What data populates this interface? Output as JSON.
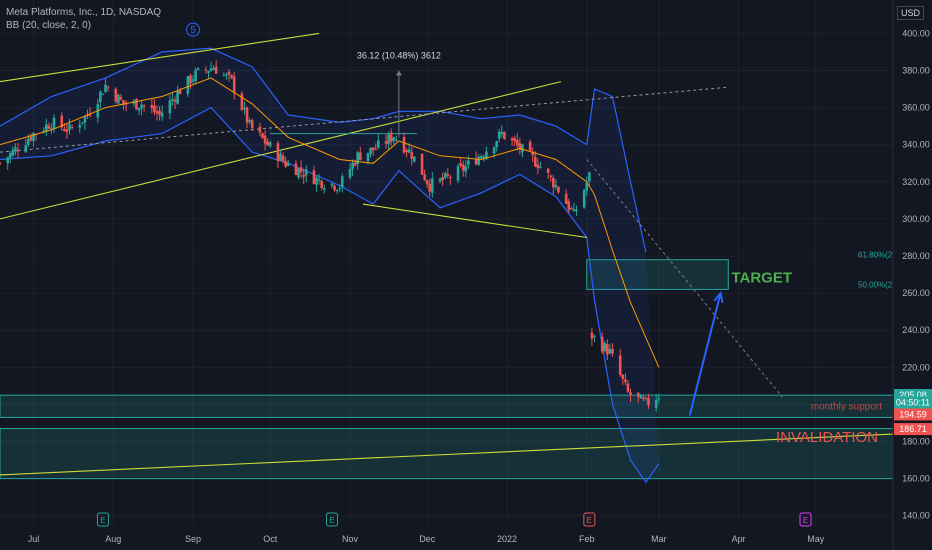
{
  "header": {
    "title": "Meta Platforms, Inc., 1D, NASDAQ",
    "indicator": "BB (20, close, 2, 0)"
  },
  "currency": "USD",
  "chart_data": {
    "type": "candlestick",
    "ylim": [
      135,
      418
    ],
    "y_ticks": [
      140,
      160,
      180,
      200,
      220,
      240,
      260,
      280,
      300,
      320,
      340,
      360,
      380,
      400
    ],
    "x_ticks": [
      {
        "label": "Jul",
        "date": "2021-07-01"
      },
      {
        "label": "Aug",
        "date": "2021-08-01"
      },
      {
        "label": "Sep",
        "date": "2021-09-01"
      },
      {
        "label": "Oct",
        "date": "2021-10-01"
      },
      {
        "label": "Nov",
        "date": "2021-11-01"
      },
      {
        "label": "Dec",
        "date": "2021-12-01"
      },
      {
        "label": "2022",
        "date": "2022-01-01"
      },
      {
        "label": "Feb",
        "date": "2022-02-01"
      },
      {
        "label": "Mar",
        "date": "2022-03-01"
      },
      {
        "label": "Apr",
        "date": "2022-04-01"
      },
      {
        "label": "May",
        "date": "2022-05-01"
      }
    ],
    "price_path": [
      [
        "2021-06-18",
        330
      ],
      [
        "2021-07-01",
        346
      ],
      [
        "2021-07-08",
        352
      ],
      [
        "2021-07-15",
        348
      ],
      [
        "2021-07-22",
        356
      ],
      [
        "2021-07-29",
        372
      ],
      [
        "2021-08-05",
        362
      ],
      [
        "2021-08-12",
        362
      ],
      [
        "2021-08-19",
        356
      ],
      [
        "2021-08-26",
        368
      ],
      [
        "2021-09-02",
        378
      ],
      [
        "2021-09-09",
        382
      ],
      [
        "2021-09-16",
        374
      ],
      [
        "2021-09-23",
        350
      ],
      [
        "2021-09-30",
        340
      ],
      [
        "2021-10-07",
        330
      ],
      [
        "2021-10-14",
        325
      ],
      [
        "2021-10-21",
        320
      ],
      [
        "2021-10-28",
        318
      ],
      [
        "2021-11-04",
        334
      ],
      [
        "2021-11-11",
        338
      ],
      [
        "2021-11-18",
        345
      ],
      [
        "2021-11-25",
        335
      ],
      [
        "2021-12-02",
        318
      ],
      [
        "2021-12-09",
        322
      ],
      [
        "2021-12-16",
        328
      ],
      [
        "2021-12-23",
        336
      ],
      [
        "2021-12-30",
        346
      ],
      [
        "2022-01-06",
        338
      ],
      [
        "2022-01-13",
        330
      ],
      [
        "2022-01-20",
        318
      ],
      [
        "2022-01-27",
        302
      ],
      [
        "2022-02-02",
        323
      ],
      [
        "2022-02-03",
        237
      ],
      [
        "2022-02-10",
        228
      ],
      [
        "2022-02-17",
        206
      ],
      [
        "2022-02-24",
        200
      ],
      [
        "2022-03-01",
        205
      ]
    ],
    "bollinger": {
      "name": "BB (20, close, 2, 0)",
      "upper": [
        [
          "2021-06-18",
          350
        ],
        [
          "2021-07-08",
          366
        ],
        [
          "2021-07-29",
          376
        ],
        [
          "2021-08-20",
          390
        ],
        [
          "2021-09-08",
          392
        ],
        [
          "2021-09-24",
          382
        ],
        [
          "2021-10-08",
          356
        ],
        [
          "2021-10-28",
          352
        ],
        [
          "2021-11-10",
          354
        ],
        [
          "2021-11-20",
          358
        ],
        [
          "2021-12-06",
          358
        ],
        [
          "2021-12-22",
          354
        ],
        [
          "2022-01-06",
          356
        ],
        [
          "2022-01-20",
          350
        ],
        [
          "2022-02-01",
          340
        ],
        [
          "2022-02-04",
          370
        ],
        [
          "2022-02-11",
          366
        ],
        [
          "2022-02-18",
          320
        ],
        [
          "2022-02-24",
          282
        ]
      ],
      "lower": [
        [
          "2021-06-18",
          332
        ],
        [
          "2021-07-08",
          334
        ],
        [
          "2021-07-29",
          342
        ],
        [
          "2021-08-20",
          346
        ],
        [
          "2021-09-08",
          360
        ],
        [
          "2021-09-24",
          336
        ],
        [
          "2021-10-08",
          330
        ],
        [
          "2021-10-28",
          318
        ],
        [
          "2021-11-10",
          308
        ],
        [
          "2021-11-20",
          326
        ],
        [
          "2021-12-06",
          306
        ],
        [
          "2021-12-22",
          314
        ],
        [
          "2022-01-06",
          324
        ],
        [
          "2022-01-20",
          312
        ],
        [
          "2022-02-01",
          290
        ],
        [
          "2022-02-04",
          256
        ],
        [
          "2022-02-11",
          200
        ],
        [
          "2022-02-18",
          170
        ],
        [
          "2022-02-24",
          158
        ],
        [
          "2022-03-01",
          168
        ]
      ],
      "basis": [
        [
          "2021-06-18",
          340
        ],
        [
          "2021-07-08",
          348
        ],
        [
          "2021-07-29",
          360
        ],
        [
          "2021-08-20",
          366
        ],
        [
          "2021-09-08",
          376
        ],
        [
          "2021-09-24",
          362
        ],
        [
          "2021-10-08",
          344
        ],
        [
          "2021-10-28",
          332
        ],
        [
          "2021-11-10",
          330
        ],
        [
          "2021-11-20",
          342
        ],
        [
          "2021-12-06",
          334
        ],
        [
          "2021-12-22",
          332
        ],
        [
          "2022-01-06",
          338
        ],
        [
          "2022-01-20",
          332
        ],
        [
          "2022-02-01",
          320
        ],
        [
          "2022-02-04",
          313
        ],
        [
          "2022-02-11",
          283
        ],
        [
          "2022-02-18",
          255
        ],
        [
          "2022-03-01",
          220
        ]
      ]
    },
    "drawings": {
      "upper_channel": [
        [
          "2021-06-18",
          374
        ],
        [
          "2021-10-20",
          400
        ]
      ],
      "lower_channel": [
        [
          "2021-06-18",
          300
        ],
        [
          "2022-01-22",
          374
        ]
      ],
      "dashed_trend": [
        [
          "2021-06-18",
          336
        ],
        [
          "2022-03-28",
          371
        ]
      ],
      "falling_wedge_line": [
        [
          "2021-11-06",
          308
        ],
        [
          "2022-02-01",
          290
        ]
      ],
      "horizontal_short": [
        [
          "2021-10-01",
          346
        ],
        [
          "2021-11-27",
          346
        ]
      ],
      "projection_dashed": [
        [
          "2022-02-01",
          332
        ],
        [
          "2022-04-18",
          204
        ]
      ],
      "long_support": [
        [
          "2021-06-18",
          162
        ],
        [
          "2022-05-31",
          184
        ]
      ],
      "blue_arrow": [
        [
          "2022-03-13",
          194
        ],
        [
          "2022-03-25",
          260
        ]
      ],
      "measure_marker": {
        "date": "2021-11-20",
        "from": 344,
        "to": 380,
        "label": "36.12 (10.48%) 3612"
      },
      "wave_label": {
        "date": "2021-09-01",
        "price": 402,
        "label": "5"
      }
    },
    "zones": [
      {
        "name": "target-zone",
        "date_from": "2022-02-01",
        "date_to": "2022-03-28",
        "from": 262,
        "to": 278,
        "color": "#26a69a"
      },
      {
        "name": "monthly-support-zone",
        "date_from": "2021-06-18",
        "date_to": "2022-05-31",
        "from": 193,
        "to": 205,
        "color": "#26a69a"
      },
      {
        "name": "lower-zone",
        "date_from": "2021-06-18",
        "date_to": "2022-05-31",
        "from": 160,
        "to": 187,
        "color": "#26a69a"
      }
    ],
    "fibonacci": [
      {
        "label": "61.80%(2",
        "price": 278
      },
      {
        "label": "50.00%(2",
        "price": 262
      }
    ],
    "annotations": {
      "target": "TARGET",
      "invalidation": "INVALIDATION",
      "monthly_support": "monthly support"
    },
    "earnings_markers": [
      {
        "date": "2021-07-28",
        "label": "E",
        "color": "#26a69a"
      },
      {
        "date": "2021-10-25",
        "label": "E",
        "color": "#26a69a"
      },
      {
        "date": "2022-02-02",
        "label": "E",
        "color": "#ef5350"
      },
      {
        "date": "2022-04-27",
        "label": "E",
        "color": "#e040fb"
      }
    ],
    "price_labels": [
      {
        "value": "205.08",
        "price": 205.08,
        "color": "#26a69a"
      },
      {
        "value": "04:50:11",
        "price": 201,
        "color": "#26a69a"
      },
      {
        "value": "194.59",
        "price": 194.59,
        "color": "#ef5350"
      },
      {
        "value": "186.71",
        "price": 186.71,
        "color": "#ef5350"
      }
    ],
    "colors": {
      "up": "#26a69a",
      "down": "#ef5350",
      "background": "#131722",
      "bb_line": "#2962ff",
      "basis": "#ff9800",
      "channel": "#cddc39"
    }
  }
}
